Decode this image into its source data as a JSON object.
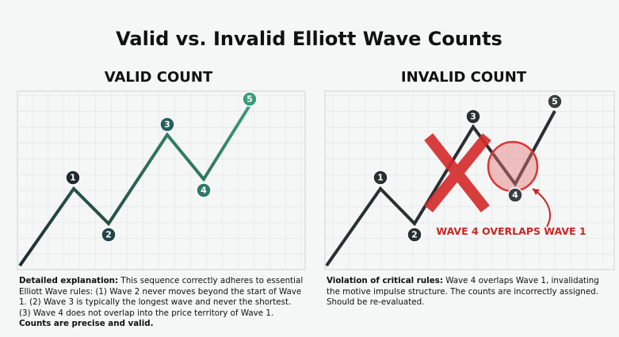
{
  "header": {
    "title": "Valid vs. Invalid Elliott Wave Counts"
  },
  "panels": [
    {
      "title": "VALID COUNT",
      "nodes": [
        {
          "label": "1"
        },
        {
          "label": "2"
        },
        {
          "label": "3"
        },
        {
          "label": "4"
        },
        {
          "label": "5"
        }
      ],
      "explanation": {
        "lead": "Detailed explanation:",
        "body": " This sequence correctly adheres to essential Elliott Wave rules: (1) Wave 2 never moves beyond the start of Wave 1. (2) Wave 3 is typically the longest wave and never the shortest. (3) Wave 4 does not overlap into the price territory of Wave 1. ",
        "tail": "Counts are precise and valid."
      }
    },
    {
      "title": "INVALID COUNT",
      "nodes": [
        {
          "label": "1"
        },
        {
          "label": "2"
        },
        {
          "label": "3"
        },
        {
          "label": "4"
        },
        {
          "label": "5"
        }
      ],
      "annotation": "WAVE 4 OVERLAPS WAVE 1",
      "explanation": {
        "lead": "Violation of critical rules:",
        "body": " Wave 4 overlaps Wave 1, invalidating the motive impulse structure. The counts are incorrectly assigned. Should be re-evaluated."
      }
    }
  ]
}
